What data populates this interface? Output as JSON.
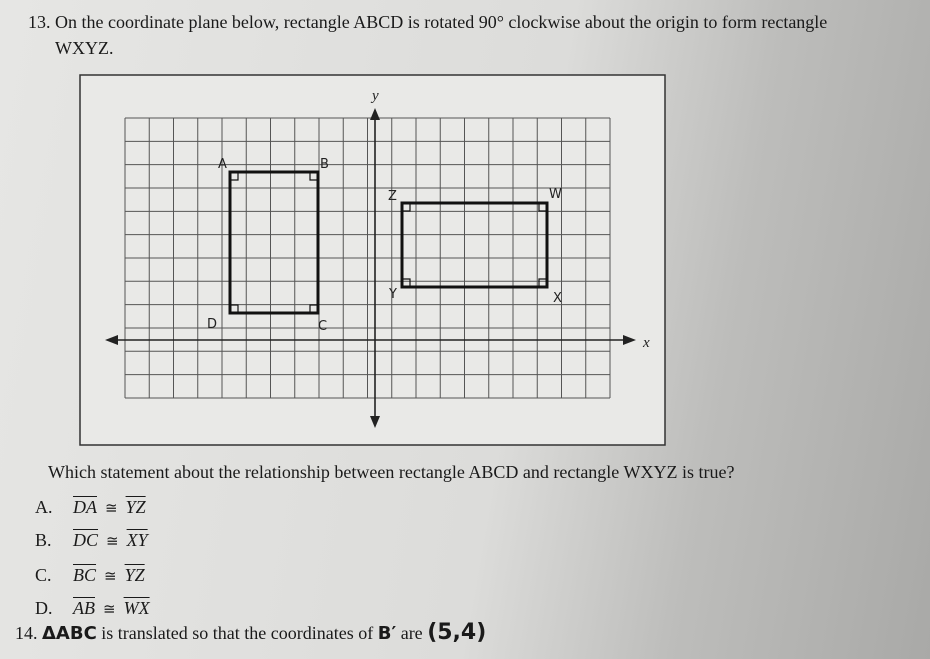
{
  "question13": {
    "number": "13.",
    "line1": "On the coordinate plane below, rectangle ABCD is rotated 90° clockwise about the origin to form rectangle",
    "line2": "WXYZ.",
    "graph": {
      "y_label": "y",
      "x_label": "x",
      "A": "A",
      "B": "B",
      "C": "C",
      "D": "D",
      "W": "W",
      "X": "X",
      "Y": "Y",
      "Z": "Z"
    },
    "prompt": "Which statement about the relationship between rectangle ABCD and rectangle WXYZ is true?",
    "options": [
      {
        "letter": "A.",
        "left": "DA",
        "symbol": "≅",
        "right": "YZ"
      },
      {
        "letter": "B.",
        "left": "DC",
        "symbol": "≅",
        "right": "XY"
      },
      {
        "letter": "C.",
        "left": "BC",
        "symbol": "≅",
        "right": "YZ"
      },
      {
        "letter": "D.",
        "left": "AB",
        "symbol": "≅",
        "right": "WX"
      }
    ]
  },
  "question14": {
    "number": "14.",
    "shape": "ΔABC",
    "text": "is translated so that the coordinates of",
    "point": "B′",
    "are": "are",
    "coords": "(5,4)"
  }
}
